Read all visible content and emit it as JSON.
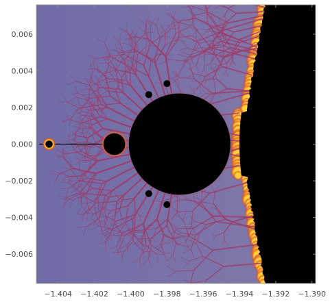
{
  "chart_data": {
    "type": "heatmap",
    "title": "",
    "xlabel": "",
    "ylabel": "",
    "xlim": [
      -1.4052,
      -1.3898
    ],
    "ylim": [
      -0.0076,
      0.0076
    ],
    "x_ticks": [
      -1.404,
      -1.402,
      -1.4,
      -1.398,
      -1.396,
      -1.394,
      -1.392,
      -1.39
    ],
    "x_tick_labels": [
      "−1.404",
      "−1.402",
      "−1.400",
      "−1.398",
      "−1.396",
      "−1.394",
      "−1.392",
      "−1.390"
    ],
    "y_ticks": [
      0.006,
      0.004,
      0.002,
      0.0,
      -0.002,
      -0.004,
      -0.006
    ],
    "y_tick_labels": [
      "0.006",
      "0.004",
      "0.002",
      "0.000",
      "−0.002",
      "−0.004",
      "−0.006"
    ],
    "grid": false,
    "legend": "none",
    "colors": {
      "background_field": "#7a75ad",
      "set_interior": "#000000",
      "boundary_low": "#9c3d6c",
      "boundary_mid": "#f06b1a",
      "boundary_high": "#ffd23a",
      "frame": "#a0a0a0"
    },
    "features": [
      {
        "name": "main-cardioid-cusp-bulb",
        "center": [
          -1.3973,
          0.0
        ],
        "radius": 0.0028
      },
      {
        "name": "period-doubling-bulb",
        "center": [
          -1.4009,
          0.0
        ],
        "radius": 0.0006
      },
      {
        "name": "mini-mandelbrot",
        "center": [
          -1.4045,
          0.0
        ],
        "radius": 0.0002
      }
    ]
  }
}
